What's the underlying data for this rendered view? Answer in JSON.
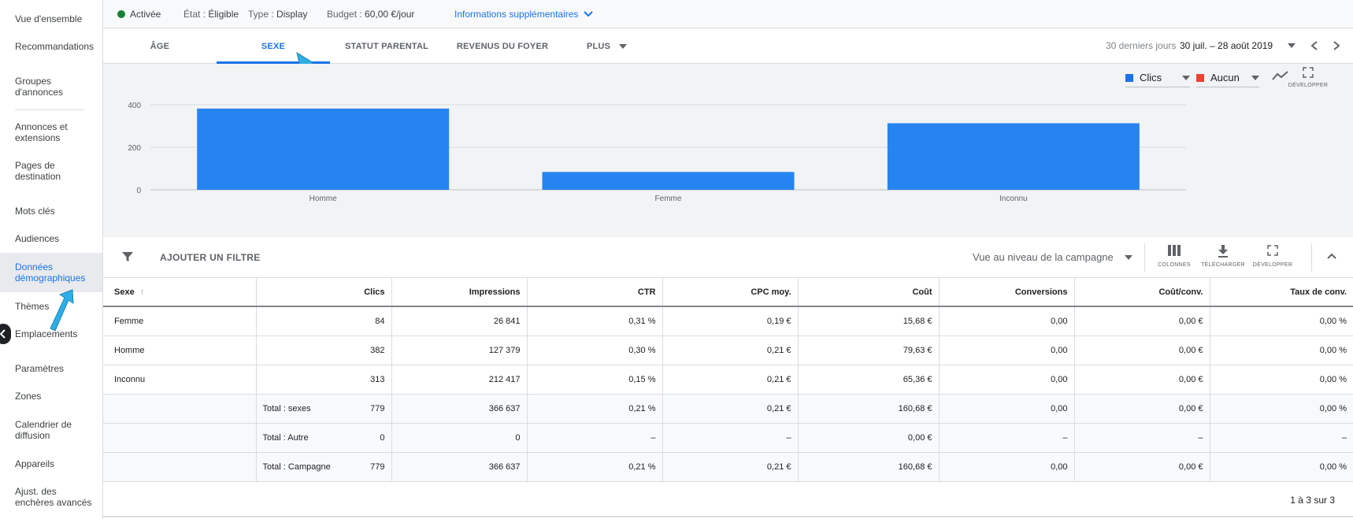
{
  "sidebar": {
    "items": [
      {
        "label": "Vue d'ensemble"
      },
      {
        "label": "Recommandations"
      },
      {
        "label": "Groupes d'annonces"
      },
      {
        "label": "Annonces et extensions"
      },
      {
        "label": "Pages de destination"
      },
      {
        "label": "Mots clés"
      },
      {
        "label": "Audiences"
      },
      {
        "label": "Données démographiques"
      },
      {
        "label": "Thèmes"
      },
      {
        "label": "Emplacements"
      },
      {
        "label": "Paramètres"
      },
      {
        "label": "Zones"
      },
      {
        "label": "Calendrier de diffusion"
      },
      {
        "label": "Appareils"
      },
      {
        "label": "Ajust. des enchères avancés"
      }
    ]
  },
  "status_bar": {
    "status": "Activée",
    "status_color": "#188038",
    "etat_label": "État :",
    "etat_value": "Éligible",
    "type_label": "Type :",
    "type_value": "Display",
    "budget_label": "Budget :",
    "budget_value": "60,00 €/jour",
    "more_info": "Informations supplémentaires"
  },
  "tabs": [
    {
      "label": "ÂGE"
    },
    {
      "label": "SEXE"
    },
    {
      "label": "STATUT PARENTAL"
    },
    {
      "label": "REVENUS DU FOYER"
    },
    {
      "label": "PLUS"
    }
  ],
  "date_range": {
    "preset": "30 derniers jours",
    "value": "30 juil. – 28 août 2019"
  },
  "chart_controls": {
    "metric1": "Clics",
    "metric1_color": "#1a73e8",
    "metric2": "Aucun",
    "metric2_color": "#ea4335",
    "expand_label": "DÉVELOPPER"
  },
  "chart_data": {
    "type": "bar",
    "categories": [
      "Homme",
      "Femme",
      "Inconnu"
    ],
    "values": [
      382,
      84,
      313
    ],
    "ylim": [
      0,
      400
    ],
    "yticks": [
      "0",
      "200",
      "400"
    ],
    "grid": true,
    "color": "#2684f0"
  },
  "filterbar": {
    "add_filter": "AJOUTER UN FILTRE",
    "view_level": "Vue au niveau de la campagne",
    "columns": "COLONNES",
    "download": "TÉLÉCHARGER",
    "expand": "DÉVELOPPER"
  },
  "table": {
    "headers": [
      "Sexe",
      "Clics",
      "Impressions",
      "CTR",
      "CPC moy.",
      "Coût",
      "Conversions",
      "Coût/conv.",
      "Taux de conv."
    ],
    "rows": [
      {
        "label": "Femme",
        "sub": "",
        "cells": [
          "84",
          "26 841",
          "0,31 %",
          "0,19 €",
          "15,68 €",
          "0,00",
          "0,00 €",
          "0,00 %"
        ]
      },
      {
        "label": "Homme",
        "sub": "",
        "cells": [
          "382",
          "127 379",
          "0,30 %",
          "0,21 €",
          "79,63 €",
          "0,00",
          "0,00 €",
          "0,00 %"
        ]
      },
      {
        "label": "Inconnu",
        "sub": "",
        "cells": [
          "313",
          "212 417",
          "0,15 %",
          "0,21 €",
          "65,36 €",
          "0,00",
          "0,00 €",
          "0,00 %"
        ]
      }
    ],
    "totals": [
      {
        "label": "Total : sexes",
        "cells": [
          "779",
          "366 637",
          "0,21 %",
          "0,21 €",
          "160,68 €",
          "0,00",
          "0,00 €",
          "0,00 %"
        ]
      },
      {
        "label": "Total : Autre",
        "cells": [
          "0",
          "0",
          "–",
          "–",
          "0,00 €",
          "–",
          "–",
          "–"
        ]
      },
      {
        "label": "Total : Campagne",
        "cells": [
          "779",
          "366 637",
          "0,21 %",
          "0,21 €",
          "160,68 €",
          "0,00",
          "0,00 €",
          "0,00 %"
        ]
      }
    ],
    "pagination": "1 à 3 sur 3"
  }
}
